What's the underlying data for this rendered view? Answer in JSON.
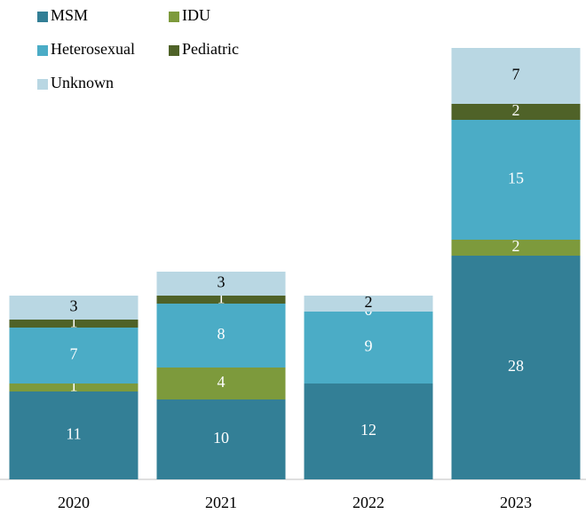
{
  "chart_data": {
    "type": "stacked_bar",
    "categories": [
      "2020",
      "2021",
      "2022",
      "2023"
    ],
    "series": [
      {
        "name": "MSM",
        "color": "#337f96",
        "label_color": "#ffffff",
        "values": [
          11,
          10,
          12,
          28
        ]
      },
      {
        "name": "IDU",
        "color": "#7d9a3c",
        "label_color": "#ffffff",
        "values": [
          1,
          4,
          0,
          2
        ],
        "value_labels": [
          "1",
          "4",
          null,
          "2"
        ]
      },
      {
        "name": "Heterosexual",
        "color": "#4bacc6",
        "label_color": "#ffffff",
        "values": [
          7,
          8,
          9,
          15
        ]
      },
      {
        "name": "Pediatric",
        "color": "#4f6228",
        "label_color": "#ffffff",
        "values": [
          1,
          1,
          0,
          2
        ]
      },
      {
        "name": "Unknown",
        "color": "#b9d7e3",
        "label_color": "#000000",
        "values": [
          3,
          3,
          2,
          7
        ]
      }
    ],
    "ylim": [
      0,
      60
    ]
  }
}
